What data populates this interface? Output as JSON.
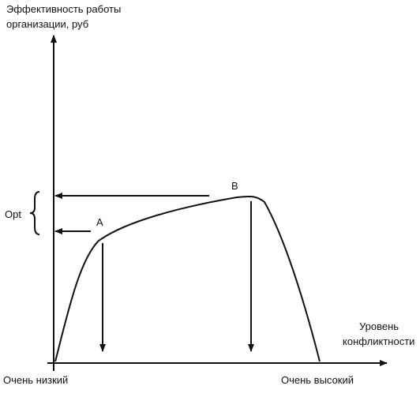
{
  "y_axis_label": [
    "Эффективность работы",
    "организации, руб"
  ],
  "x_axis_label": [
    "Уровень",
    "конфликтности"
  ],
  "opt_label": "Opt",
  "point_a": "A",
  "point_b": "B",
  "x_low_label": "Очень низкий",
  "x_high_label": "Очень высокий"
}
